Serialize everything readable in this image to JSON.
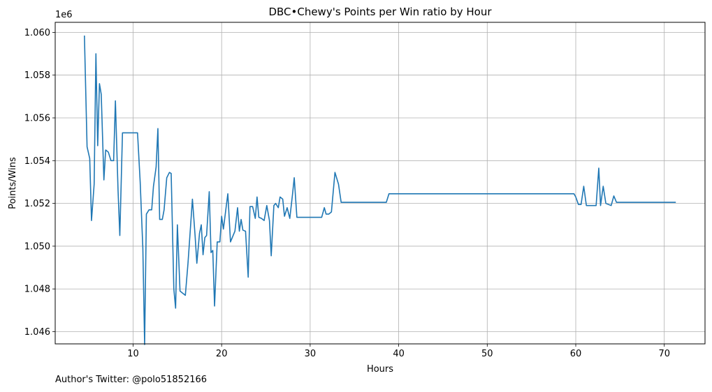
{
  "chart_data": {
    "type": "line",
    "title": "DBC•Chewy's Points per Win ratio by Hour",
    "xlabel": "Hours",
    "ylabel": "Points/Wins",
    "y_offset_label": "1e6",
    "xlim": [
      1.2,
      74.6
    ],
    "ylim": [
      1.04543,
      1.06047
    ],
    "x_ticks": [
      10,
      20,
      30,
      40,
      50,
      60,
      70
    ],
    "y_ticks": [
      1.046,
      1.048,
      1.05,
      1.052,
      1.054,
      1.056,
      1.058,
      1.06
    ],
    "x_tick_labels": [
      "10",
      "20",
      "30",
      "40",
      "50",
      "60",
      "70"
    ],
    "y_tick_labels": [
      "1.046",
      "1.048",
      "1.050",
      "1.052",
      "1.054",
      "1.056",
      "1.058",
      "1.060"
    ],
    "grid": true,
    "color": "#1f77b4",
    "series": [
      {
        "values": [
          [
            4.5,
            1.05985
          ],
          [
            4.8,
            1.05465
          ],
          [
            5.1,
            1.0541
          ],
          [
            5.3,
            1.0512
          ],
          [
            5.6,
            1.0529
          ],
          [
            5.8,
            1.059
          ],
          [
            6.0,
            1.0547
          ],
          [
            6.2,
            1.0576
          ],
          [
            6.4,
            1.0571
          ],
          [
            6.7,
            1.0531
          ],
          [
            6.9,
            1.0545
          ],
          [
            7.2,
            1.0544
          ],
          [
            7.5,
            1.054
          ],
          [
            7.8,
            1.054
          ],
          [
            8.0,
            1.0568
          ],
          [
            8.3,
            1.0526
          ],
          [
            8.5,
            1.0505
          ],
          [
            8.8,
            1.0553
          ],
          [
            9.4,
            1.0553
          ],
          [
            10.0,
            1.0553
          ],
          [
            10.5,
            1.0553
          ],
          [
            10.8,
            1.053
          ],
          [
            11.1,
            1.0499
          ],
          [
            11.3,
            1.0454
          ],
          [
            11.5,
            1.0515
          ],
          [
            11.8,
            1.0517
          ],
          [
            12.1,
            1.0517
          ],
          [
            12.3,
            1.0528
          ],
          [
            12.6,
            1.0537
          ],
          [
            12.8,
            1.0555
          ],
          [
            13.0,
            1.05125
          ],
          [
            13.3,
            1.05125
          ],
          [
            13.5,
            1.0517
          ],
          [
            13.8,
            1.0532
          ],
          [
            14.1,
            1.05345
          ],
          [
            14.3,
            1.0534
          ],
          [
            14.6,
            1.048
          ],
          [
            14.8,
            1.0471
          ],
          [
            15.0,
            1.051
          ],
          [
            15.3,
            1.0479
          ],
          [
            15.6,
            1.0478
          ],
          [
            15.9,
            1.0477
          ],
          [
            16.2,
            1.0492
          ],
          [
            16.5,
            1.051
          ],
          [
            16.7,
            1.0522
          ],
          [
            17.0,
            1.0505
          ],
          [
            17.2,
            1.0492
          ],
          [
            17.5,
            1.0506
          ],
          [
            17.7,
            1.051
          ],
          [
            17.9,
            1.0496
          ],
          [
            18.1,
            1.0504
          ],
          [
            18.3,
            1.0505
          ],
          [
            18.6,
            1.05255
          ],
          [
            18.8,
            1.0497
          ],
          [
            19.0,
            1.0498
          ],
          [
            19.2,
            1.0472
          ],
          [
            19.5,
            1.0502
          ],
          [
            19.8,
            1.0502
          ],
          [
            20.0,
            1.0514
          ],
          [
            20.2,
            1.0508
          ],
          [
            20.5,
            1.0518
          ],
          [
            20.7,
            1.05245
          ],
          [
            21.0,
            1.0502
          ],
          [
            21.3,
            1.0505
          ],
          [
            21.5,
            1.0507
          ],
          [
            21.8,
            1.0518
          ],
          [
            22.0,
            1.0507
          ],
          [
            22.2,
            1.05125
          ],
          [
            22.4,
            1.05075
          ],
          [
            22.7,
            1.0507
          ],
          [
            23.0,
            1.04855
          ],
          [
            23.2,
            1.05185
          ],
          [
            23.5,
            1.05185
          ],
          [
            23.8,
            1.0513
          ],
          [
            24.0,
            1.0523
          ],
          [
            24.2,
            1.05135
          ],
          [
            24.5,
            1.0513
          ],
          [
            24.8,
            1.0512
          ],
          [
            25.1,
            1.0519
          ],
          [
            25.4,
            1.0512
          ],
          [
            25.6,
            1.04955
          ],
          [
            25.9,
            1.0519
          ],
          [
            26.1,
            1.052
          ],
          [
            26.4,
            1.0518
          ],
          [
            26.6,
            1.0523
          ],
          [
            26.9,
            1.0522
          ],
          [
            27.1,
            1.0514
          ],
          [
            27.4,
            1.0518
          ],
          [
            27.7,
            1.0513
          ],
          [
            28.0,
            1.0524
          ],
          [
            28.2,
            1.0532
          ],
          [
            28.5,
            1.05135
          ],
          [
            29.0,
            1.05135
          ],
          [
            30.0,
            1.05135
          ],
          [
            31.0,
            1.05135
          ],
          [
            31.3,
            1.05135
          ],
          [
            31.6,
            1.0518
          ],
          [
            31.8,
            1.0515
          ],
          [
            32.1,
            1.0515
          ],
          [
            32.4,
            1.0516
          ],
          [
            32.8,
            1.05345
          ],
          [
            33.2,
            1.0529
          ],
          [
            33.5,
            1.05205
          ],
          [
            35.0,
            1.05205
          ],
          [
            37.0,
            1.05205
          ],
          [
            38.6,
            1.05205
          ],
          [
            38.9,
            1.05245
          ],
          [
            40.0,
            1.05245
          ],
          [
            45.0,
            1.05245
          ],
          [
            50.0,
            1.05245
          ],
          [
            55.0,
            1.05245
          ],
          [
            59.8,
            1.05245
          ],
          [
            60.0,
            1.0523
          ],
          [
            60.3,
            1.05195
          ],
          [
            60.6,
            1.05195
          ],
          [
            60.9,
            1.0528
          ],
          [
            61.2,
            1.0519
          ],
          [
            61.5,
            1.0519
          ],
          [
            62.0,
            1.0519
          ],
          [
            62.3,
            1.0519
          ],
          [
            62.6,
            1.05365
          ],
          [
            62.8,
            1.0519
          ],
          [
            63.1,
            1.0528
          ],
          [
            63.4,
            1.052
          ],
          [
            64.0,
            1.0519
          ],
          [
            64.3,
            1.05235
          ],
          [
            64.6,
            1.05205
          ],
          [
            66.0,
            1.05205
          ],
          [
            68.0,
            1.05205
          ],
          [
            70.0,
            1.05205
          ],
          [
            71.3,
            1.05205
          ]
        ]
      }
    ]
  },
  "footer_text": "Author's Twitter: @polo51852166"
}
